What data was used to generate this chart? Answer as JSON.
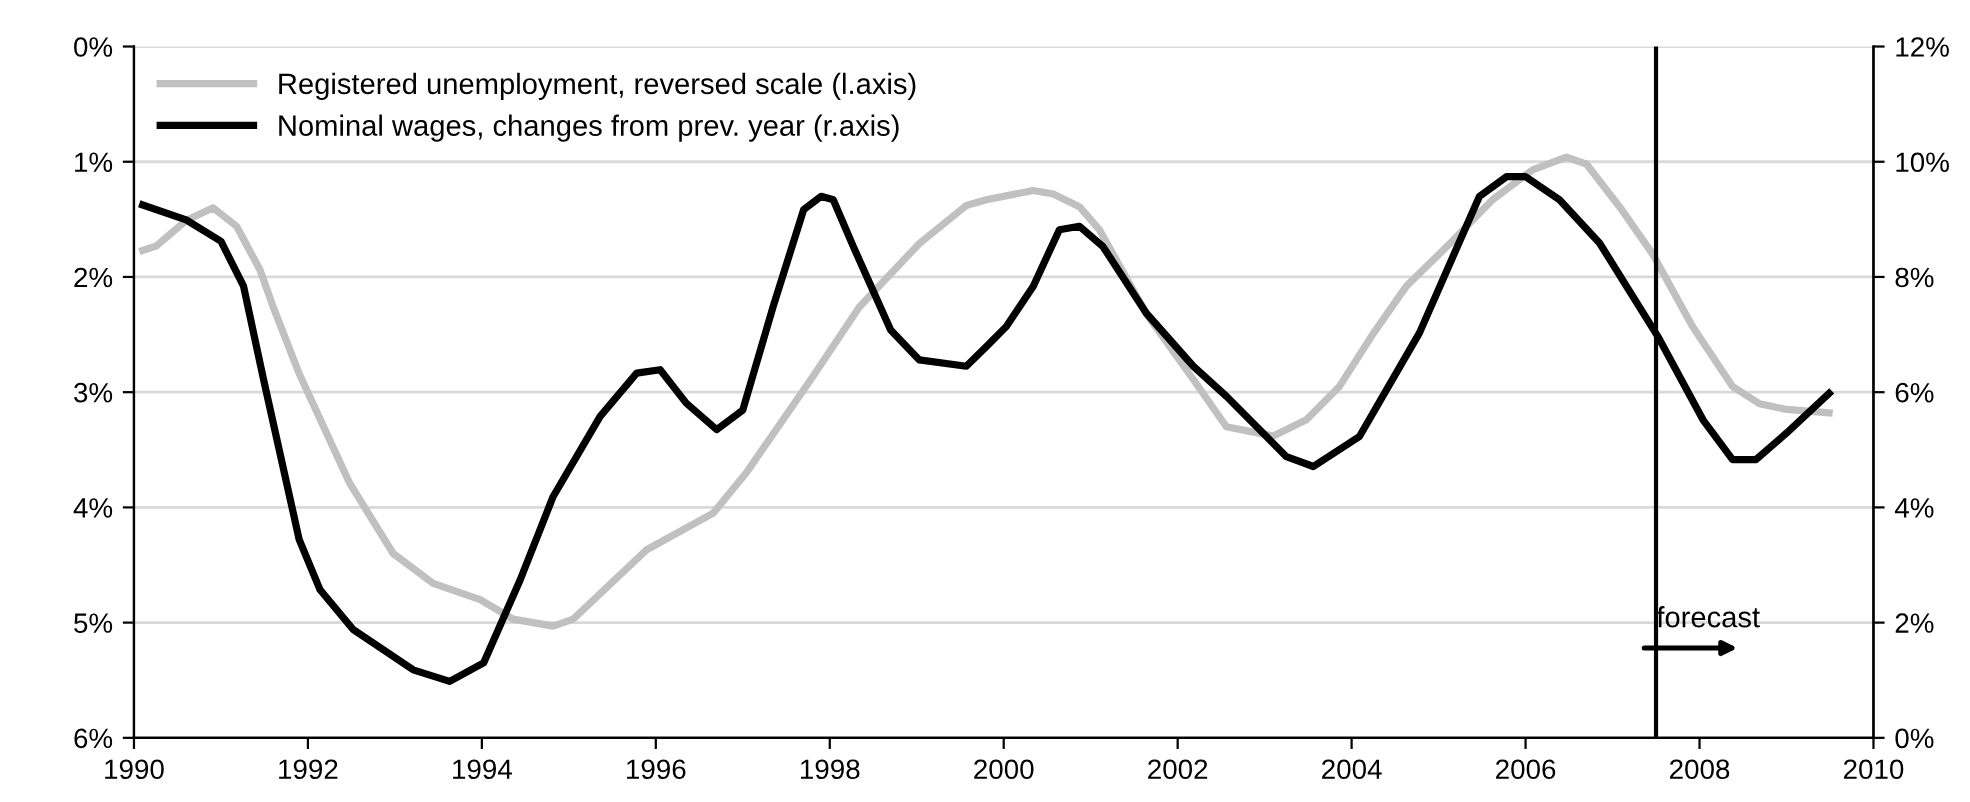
{
  "chart_data": {
    "type": "line",
    "x": [
      1990.1,
      1990.26,
      1990.6,
      1990.91,
      1991.18,
      1991.45,
      1991.6,
      1991.9,
      1992.48,
      1992.98,
      1993.44,
      1993.98,
      1994.36,
      1994.82,
      1995.05,
      1995.89,
      1996.66,
      1997.04,
      1997.81,
      1998.34,
      1999.03,
      1999.57,
      1999.8,
      2000.34,
      2000.57,
      2000.87,
      2001.1,
      2001.64,
      2002.18,
      2002.56,
      2003.1,
      2003.48,
      2003.86,
      2004.25,
      2004.63,
      2005.17,
      2005.62,
      2006.08,
      2006.47,
      2006.7,
      2007.08,
      2007.46,
      2007.92,
      2008.38,
      2008.69,
      2009.0,
      2009.49
    ],
    "series": [
      {
        "name": "Registered unemployment, reversed scale (l.axis)",
        "color": "#c0c0c0",
        "values": [
          1.77,
          1.73,
          1.51,
          1.4,
          1.56,
          1.94,
          2.26,
          2.84,
          3.79,
          4.4,
          4.66,
          4.8,
          4.97,
          5.03,
          4.97,
          4.37,
          4.05,
          3.7,
          2.86,
          2.26,
          1.71,
          1.38,
          1.33,
          1.25,
          1.28,
          1.39,
          1.59,
          2.32,
          2.89,
          3.3,
          3.38,
          3.24,
          2.95,
          2.49,
          2.08,
          1.68,
          1.33,
          1.07,
          0.96,
          1.02,
          1.39,
          1.8,
          2.43,
          2.95,
          3.1,
          3.15,
          3.18
        ]
      },
      {
        "name": "Nominal wages, changes from prev. year (r.axis)",
        "color": "#000000",
        "axis": "y2",
        "x": [
          1990.1,
          1990.6,
          1991.0,
          1991.26,
          1991.49,
          1991.9,
          1992.14,
          1992.52,
          1993.21,
          1993.63,
          1994.02,
          1994.44,
          1994.82,
          1995.36,
          1995.78,
          1996.05,
          1996.35,
          1996.7,
          1997.0,
          1997.35,
          1997.7,
          1997.9,
          1998.04,
          1998.27,
          1998.7,
          1999.03,
          1999.57,
          1999.8,
          2000.03,
          2000.34,
          2000.64,
          2000.87,
          2001.14,
          2001.64,
          2002.18,
          2002.56,
          2003.25,
          2003.56,
          2004.09,
          2004.78,
          2005.47,
          2005.78,
          2006.0,
          2006.39,
          2006.85,
          2007.52,
          2008.04,
          2008.38,
          2008.65,
          2009.0,
          2009.49
        ],
        "values": [
          9.25,
          8.99,
          8.62,
          7.84,
          6.22,
          3.44,
          2.57,
          1.88,
          1.18,
          0.98,
          1.3,
          2.74,
          4.19,
          5.58,
          6.33,
          6.39,
          5.81,
          5.35,
          5.69,
          7.49,
          9.17,
          9.4,
          9.34,
          8.53,
          7.08,
          6.56,
          6.45,
          6.79,
          7.14,
          7.84,
          8.82,
          8.88,
          8.53,
          7.37,
          6.45,
          5.93,
          4.88,
          4.71,
          5.23,
          7.03,
          9.4,
          9.74,
          9.74,
          9.34,
          8.59,
          6.97,
          5.52,
          4.83,
          4.83,
          5.29,
          5.98
        ]
      }
    ],
    "xlim": [
      1990,
      2010
    ],
    "xticks": [
      1990,
      1992,
      1994,
      1996,
      1998,
      2000,
      2002,
      2004,
      2006,
      2008,
      2010
    ],
    "ylim": [
      6,
      0
    ],
    "yticks": [
      {
        "value": 0,
        "label": "0%"
      },
      {
        "value": 1,
        "label": "1%"
      },
      {
        "value": 2,
        "label": "2%"
      },
      {
        "value": 3,
        "label": "3%"
      },
      {
        "value": 4,
        "label": "4%"
      },
      {
        "value": 5,
        "label": "5%"
      },
      {
        "value": 6,
        "label": "6%"
      }
    ],
    "y2lim": [
      0,
      12
    ],
    "y2ticks": [
      {
        "value": 0,
        "label": "0%"
      },
      {
        "value": 2,
        "label": "2%"
      },
      {
        "value": 4,
        "label": "4%"
      },
      {
        "value": 6,
        "label": "6%"
      },
      {
        "value": 8,
        "label": "8%"
      },
      {
        "value": 10,
        "label": "10%"
      },
      {
        "value": 12,
        "label": "12%"
      }
    ],
    "ref_lines": [
      {
        "axis": "x",
        "value": 2007.5,
        "color": "#000000"
      }
    ],
    "annotations": [
      "forecast"
    ],
    "grid": "y",
    "legend": "top left",
    "marker": "none",
    "line_style": "solid"
  }
}
